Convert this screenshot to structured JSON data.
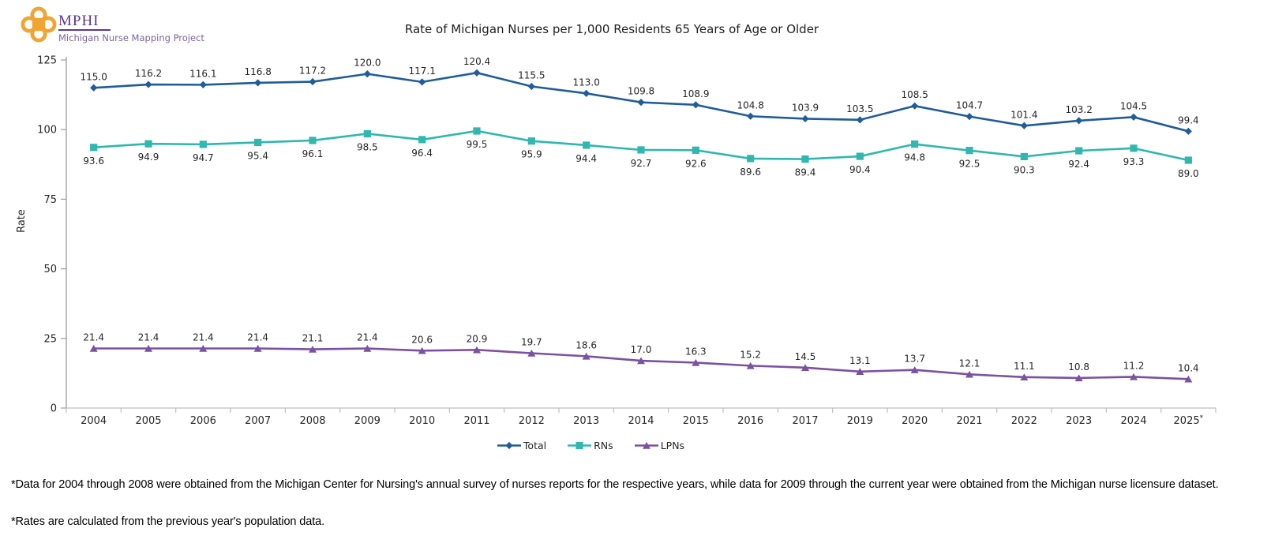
{
  "logo": {
    "acronym": "MPHI",
    "subtitle": "Michigan Nurse Mapping Project",
    "icon": "knot-icon",
    "orange": "#F0A431",
    "purple": "#5A3796"
  },
  "chart_data": {
    "type": "line",
    "title": "Rate of Michigan Nurses per 1,000 Residents 65 Years of Age or Older",
    "xlabel": "",
    "ylabel": "Rate",
    "ylim": [
      0,
      125
    ],
    "yticks": [
      0,
      25,
      50,
      75,
      100,
      125
    ],
    "grid": false,
    "legend_position": "bottom",
    "categories": [
      "2004",
      "2005",
      "2006",
      "2007",
      "2008",
      "2009",
      "2010",
      "2011",
      "2012",
      "2013",
      "2014",
      "2015",
      "2016",
      "2017",
      "2019",
      "2020",
      "2021",
      "2022",
      "2023",
      "2024",
      "2025*"
    ],
    "series": [
      {
        "name": "Total",
        "color": "#1F5C99",
        "marker": "diamond",
        "label_position": "above",
        "values": [
          115.0,
          116.2,
          116.1,
          116.8,
          117.2,
          120.0,
          117.1,
          120.4,
          115.5,
          113.0,
          109.8,
          108.9,
          104.8,
          103.9,
          103.5,
          108.5,
          104.7,
          101.4,
          103.2,
          104.5,
          99.4
        ]
      },
      {
        "name": "RNs",
        "color": "#2FB7B0",
        "marker": "square",
        "label_position": "below",
        "values": [
          93.6,
          94.9,
          94.7,
          95.4,
          96.1,
          98.5,
          96.4,
          99.5,
          95.9,
          94.4,
          92.7,
          92.6,
          89.6,
          89.4,
          90.4,
          94.8,
          92.5,
          90.3,
          92.4,
          93.3,
          89.0
        ]
      },
      {
        "name": "LPNs",
        "color": "#7B51A1",
        "marker": "triangle",
        "label_position": "above",
        "values": [
          21.4,
          21.4,
          21.4,
          21.4,
          21.1,
          21.4,
          20.6,
          20.9,
          19.7,
          18.6,
          17.0,
          16.3,
          15.2,
          14.5,
          13.1,
          13.7,
          12.1,
          11.1,
          10.8,
          11.2,
          10.4
        ]
      }
    ],
    "axis_text_color": "#262626",
    "axis_line_color": "#9b9b9b",
    "tick_line_color": "#bfbfbf"
  },
  "footnotes": [
    "*Data for 2004 through 2008 were obtained from the Michigan Center for Nursing's annual survey of nurses reports for the respective years, while data for 2009 through the current year were obtained from the Michigan nurse licensure dataset.",
    "*Rates are calculated from the previous year's population data."
  ]
}
